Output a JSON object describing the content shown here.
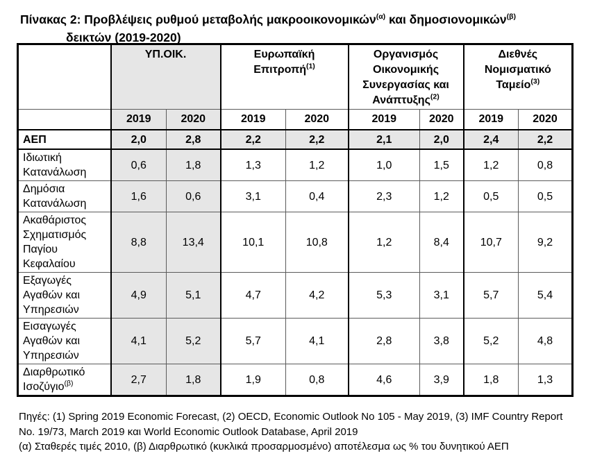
{
  "page": {
    "title": {
      "part1": "Πίνακας 2: Προβλέψεις ρυθμού μεταβολής μακροοικονομικών",
      "sup1": "(α)",
      "part2": " και δημοσιονομικών",
      "sup2": "(β)",
      "line2": "δεικτών (2019-2020)"
    },
    "footnotes": [
      "Πηγές: (1) Spring 2019 Economic Forecast, (2) OECD, Economic Outlook No 105 - May 2019, (3) IMF Country Report",
      "No. 19/73, March 2019 και World Economic Outlook Database, April 2019",
      "(α) Σταθερές τιμές 2010, (β) Διαρθρωτικό (κυκλικά προσαρμοσμένο) αποτέλεσμα ως % του δυνητικού ΑΕΠ"
    ]
  },
  "table": {
    "groups": [
      {
        "name": "ΥΠ.ΟΙΚ.",
        "sup": "",
        "shaded": true
      },
      {
        "name": "Ευρωπαϊκή\nΕπιτροπή",
        "sup": "(1)",
        "shaded": false
      },
      {
        "name": "Οργανισμός\nΟικονομικής\nΣυνεργασίας και\nΑνάπτυξης",
        "sup": "(2)",
        "shaded": false
      },
      {
        "name": "Διεθνές\nΝομισματικό\nΤαμείο",
        "sup": "(3)",
        "shaded": false
      }
    ],
    "year_headers": [
      "2019",
      "2020",
      "2019",
      "2020",
      "2019",
      "2020",
      "2019",
      "2020"
    ],
    "rows": [
      {
        "label": "ΑΕΠ",
        "sup": "",
        "highlight": true,
        "values": [
          "2,0",
          "2,8",
          "2,2",
          "2,2",
          "2,1",
          "2,0",
          "2,4",
          "2,2"
        ]
      },
      {
        "label": "Ιδιωτική Κατανάλωση",
        "sup": "",
        "highlight": false,
        "values": [
          "0,6",
          "1,8",
          "1,3",
          "1,2",
          "1,0",
          "1,5",
          "1,2",
          "0,8"
        ]
      },
      {
        "label": "Δημόσια Κατανάλωση",
        "sup": "",
        "highlight": false,
        "values": [
          "1,6",
          "0,6",
          "3,1",
          "0,4",
          "2,3",
          "1,2",
          "0,5",
          "0,5"
        ]
      },
      {
        "label": "Ακαθάριστος Σχηματισμός Παγίου Κεφαλαίου",
        "sup": "",
        "highlight": false,
        "values": [
          "8,8",
          "13,4",
          "10,1",
          "10,8",
          "1,2",
          "8,4",
          "10,7",
          "9,2"
        ]
      },
      {
        "label": "Εξαγωγές Αγαθών και Υπηρεσιών",
        "sup": "",
        "highlight": false,
        "values": [
          "4,9",
          "5,1",
          "4,7",
          "4,2",
          "5,3",
          "3,1",
          "5,7",
          "5,4"
        ]
      },
      {
        "label": "Εισαγωγές Αγαθών και Υπηρεσιών",
        "sup": "",
        "highlight": false,
        "values": [
          "4,1",
          "5,2",
          "5,7",
          "4,1",
          "2,8",
          "3,8",
          "5,2",
          "4,8"
        ]
      },
      {
        "label": "Διαρθρωτικό Ισοζύγιο",
        "sup": "(β)",
        "highlight": false,
        "values": [
          "2,7",
          "1,8",
          "1,9",
          "0,8",
          "4,6",
          "3,9",
          "1,8",
          "1,3"
        ]
      }
    ],
    "colors": {
      "shade": "#e6e6e6",
      "border_dark": "#000000",
      "border_thin": "#5a5a5a"
    }
  }
}
